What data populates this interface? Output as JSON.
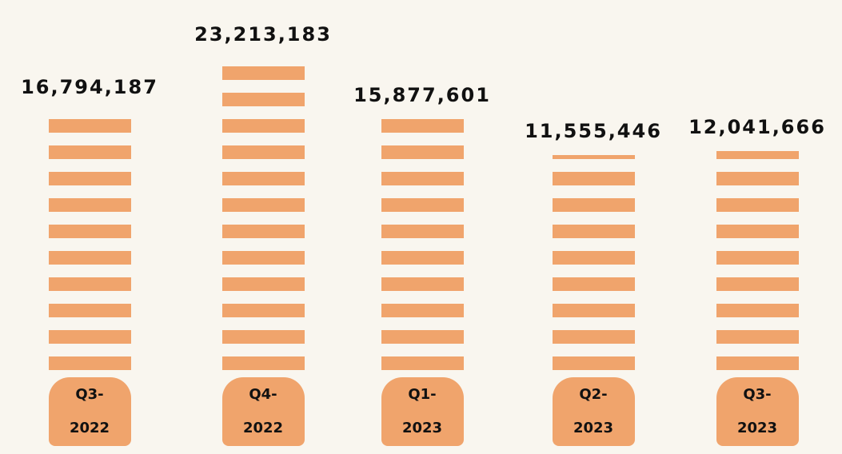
{
  "chart_data": {
    "type": "bar",
    "categories": [
      "Q3-2022",
      "Q4-2022",
      "Q1-2023",
      "Q2-2023",
      "Q3-2023"
    ],
    "values": [
      16794187,
      23213183,
      15877601,
      11555446,
      12041666
    ],
    "value_labels": [
      "16,794,187",
      "23,213,183",
      "15,877,601",
      "11,555,446",
      "12,041,666"
    ],
    "color": "#f0a46c"
  }
}
